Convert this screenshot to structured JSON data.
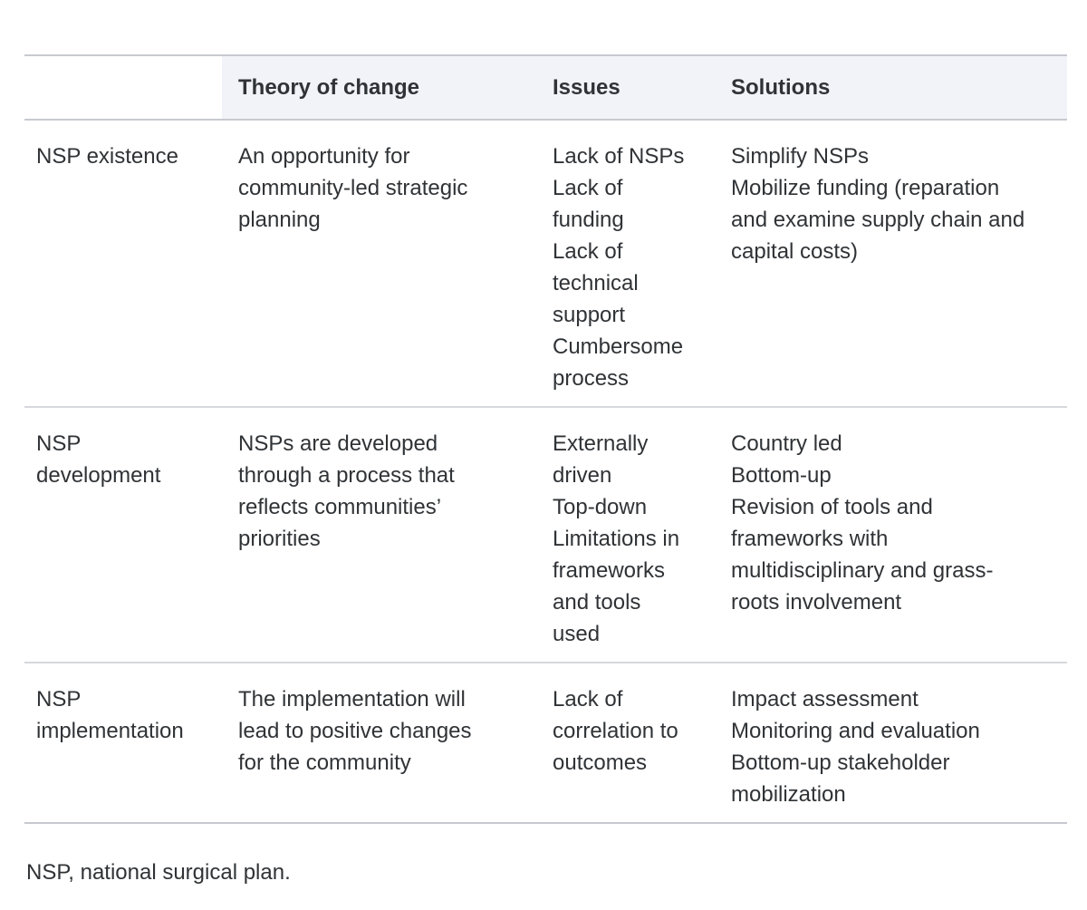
{
  "table": {
    "columns": [
      "",
      "Theory of change",
      "Issues",
      "Solutions"
    ],
    "rows": [
      {
        "label": [
          "NSP existence"
        ],
        "theory_of_change": [
          "An opportunity for",
          "community-led strategic",
          "planning"
        ],
        "issues": [
          "Lack of NSPs",
          "Lack of",
          "funding",
          "Lack of",
          "technical",
          "support",
          "Cumbersome",
          "process"
        ],
        "solutions": [
          "Simplify NSPs",
          "Mobilize funding (reparation",
          "and examine supply chain and",
          "capital costs)"
        ]
      },
      {
        "label": [
          "NSP",
          "development"
        ],
        "theory_of_change": [
          "NSPs are developed",
          "through a process that",
          "reflects communities’",
          "priorities"
        ],
        "issues": [
          "Externally",
          "driven",
          "Top-down",
          "Limitations in",
          "frameworks",
          "and tools",
          "used"
        ],
        "solutions": [
          "Country led",
          "Bottom-up",
          "Revision of tools and",
          "frameworks with",
          "multidisciplinary and grass-",
          "roots involvement"
        ]
      },
      {
        "label": [
          "NSP",
          "implementation"
        ],
        "theory_of_change": [
          "The implementation will",
          "lead to positive changes",
          "for the community"
        ],
        "issues": [
          "Lack of",
          "correlation to",
          "outcomes"
        ],
        "solutions": [
          "Impact assessment",
          "Monitoring and evaluation",
          "Bottom-up stakeholder",
          "mobilization"
        ]
      }
    ],
    "footnote": "NSP, national surgical plan."
  }
}
